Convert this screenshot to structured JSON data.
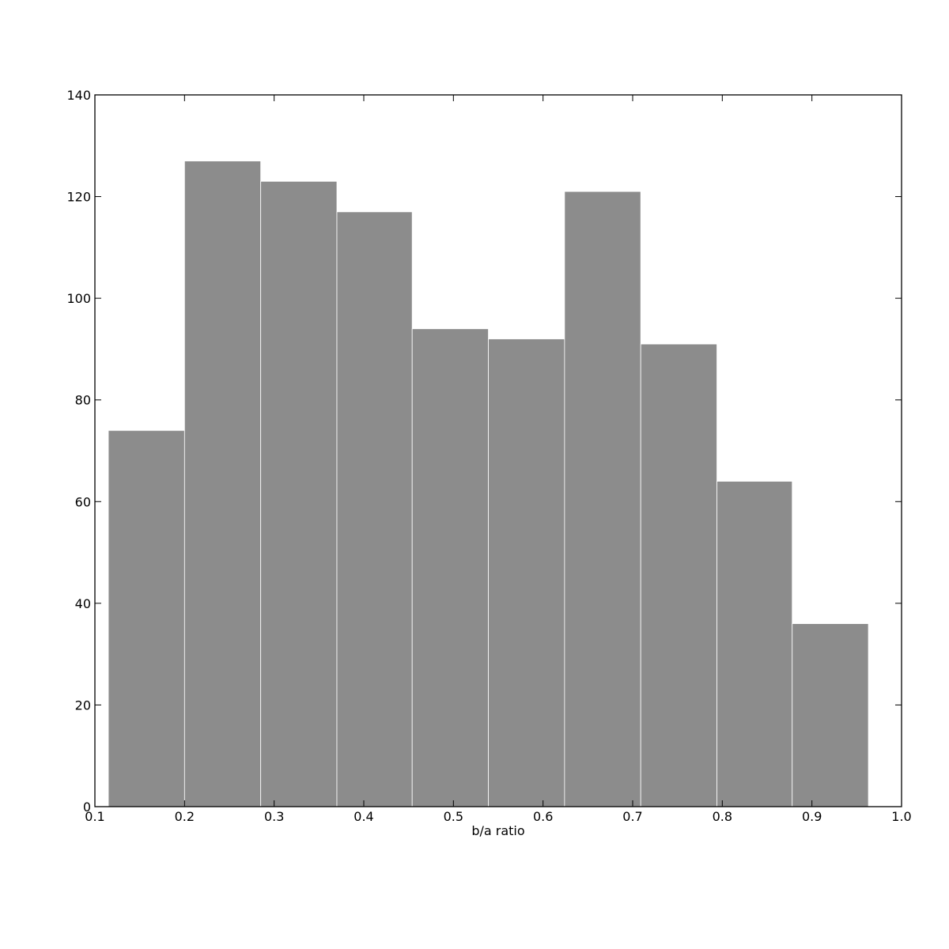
{
  "chart_data": {
    "type": "bar",
    "title": "",
    "xlabel": "b/a ratio",
    "ylabel": "",
    "xlim": [
      0.1,
      1.0
    ],
    "ylim": [
      0,
      140
    ],
    "xticks": [
      "0.1",
      "0.2",
      "0.3",
      "0.4",
      "0.5",
      "0.6",
      "0.7",
      "0.8",
      "0.9",
      "1.0"
    ],
    "yticks": [
      "0",
      "20",
      "40",
      "60",
      "80",
      "100",
      "120",
      "140"
    ],
    "bins": [
      {
        "x0": 0.115,
        "x1": 0.2,
        "count": 74
      },
      {
        "x0": 0.2,
        "x1": 0.285,
        "count": 127
      },
      {
        "x0": 0.285,
        "x1": 0.37,
        "count": 123
      },
      {
        "x0": 0.37,
        "x1": 0.454,
        "count": 117
      },
      {
        "x0": 0.454,
        "x1": 0.539,
        "count": 94
      },
      {
        "x0": 0.539,
        "x1": 0.624,
        "count": 92
      },
      {
        "x0": 0.624,
        "x1": 0.709,
        "count": 121
      },
      {
        "x0": 0.709,
        "x1": 0.794,
        "count": 91
      },
      {
        "x0": 0.794,
        "x1": 0.878,
        "count": 64
      },
      {
        "x0": 0.878,
        "x1": 0.963,
        "count": 36
      }
    ],
    "grid": false,
    "legend": "none",
    "colors": {
      "bar": "#8c8c8c",
      "bar_edge": "#ffffff",
      "axis": "#000000"
    }
  }
}
